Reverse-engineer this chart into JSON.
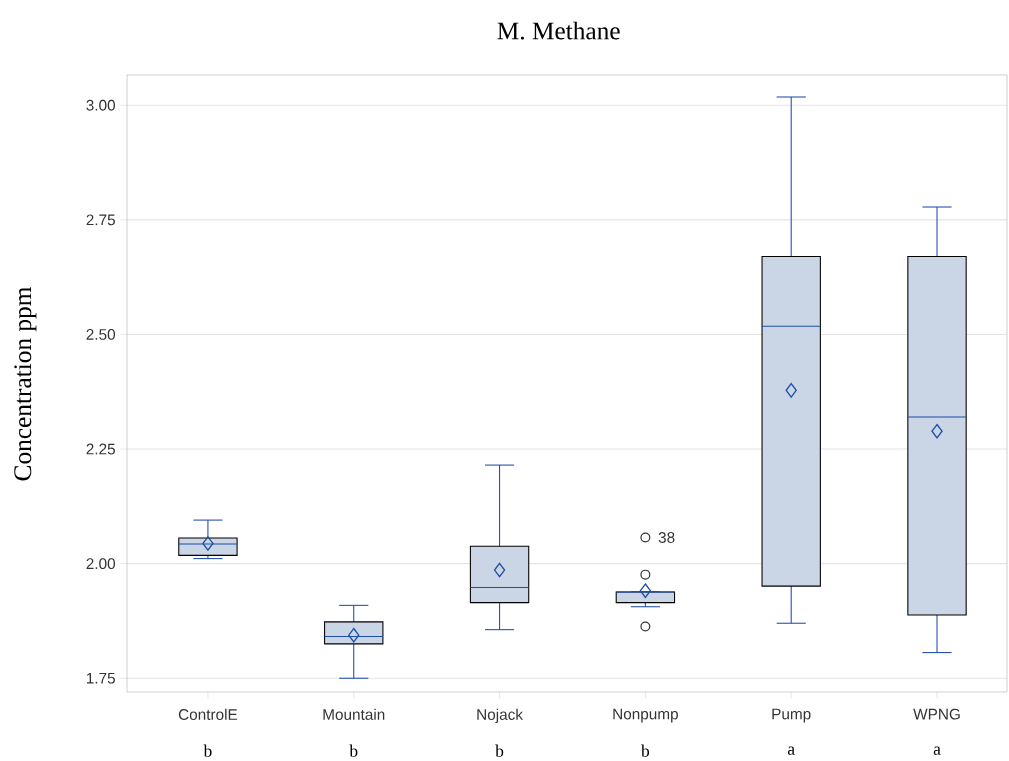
{
  "chart_data": {
    "type": "box",
    "title": "M. Methane",
    "ylabel": "Concentration  ppm",
    "categories": [
      "ControlE",
      "Mountain",
      "Nojack",
      "Nonpump",
      "Pump",
      "WPNG"
    ],
    "boxes": [
      {
        "low": 2.011,
        "q1": 2.018,
        "median": 2.043,
        "q3": 2.056,
        "high": 2.095,
        "mean": 2.044
      },
      {
        "low": 1.75,
        "q1": 1.825,
        "median": 1.841,
        "q3": 1.873,
        "high": 1.909,
        "mean": 1.844
      },
      {
        "low": 1.856,
        "q1": 1.915,
        "median": 1.948,
        "q3": 2.038,
        "high": 2.215,
        "mean": 1.986
      },
      {
        "low": 1.906,
        "q1": 1.915,
        "median": 1.938,
        "q3": 1.938,
        "high": 1.938,
        "mean": 1.941,
        "outliers": [
          2.057,
          1.976,
          1.863
        ]
      },
      {
        "low": 1.87,
        "q1": 1.951,
        "median": 2.518,
        "q3": 2.67,
        "high": 3.018,
        "mean": 2.378
      },
      {
        "low": 1.806,
        "q1": 1.888,
        "median": 2.32,
        "q3": 2.67,
        "high": 2.778,
        "mean": 2.289
      }
    ],
    "color": "#cad5e5",
    "marker": "diamond",
    "ylim": [
      1.72,
      3.066
    ],
    "yticks": [
      {
        "value": 1.75,
        "label": "1.75"
      },
      {
        "value": 2.0,
        "label": "2.00"
      },
      {
        "value": 2.25,
        "label": "2.25"
      },
      {
        "value": 2.5,
        "label": "2.50"
      },
      {
        "value": 2.75,
        "label": "2.75"
      },
      {
        "value": 3.0,
        "label": "3.00"
      }
    ],
    "grid": "y",
    "annotations": [
      "38",
      "b",
      "b",
      "b",
      "b",
      "a",
      "a"
    ]
  }
}
